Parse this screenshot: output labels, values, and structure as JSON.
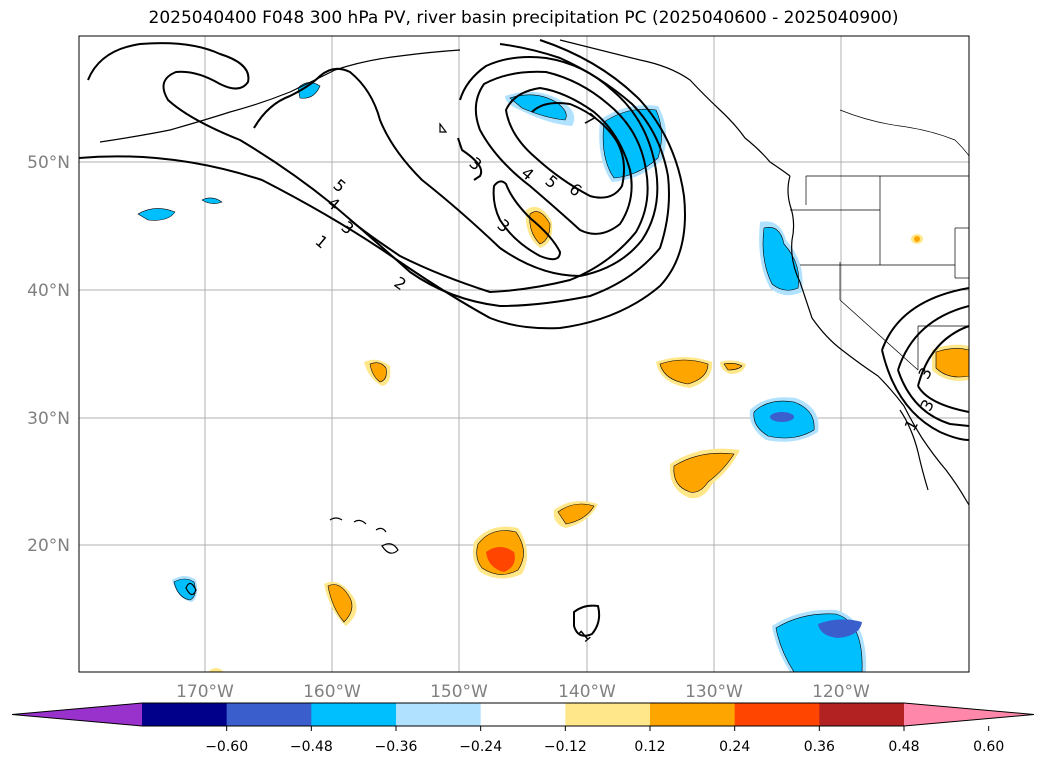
{
  "title": "2025040400 F048 300 hPa PV, river basin precipitation PC (2025040600 - 2025040900)",
  "map": {
    "lon_labels": [
      "170°W",
      "160°W",
      "150°W",
      "140°W",
      "130°W",
      "120°W"
    ],
    "lat_labels": [
      "50°N",
      "40°N",
      "30°N",
      "20°N"
    ],
    "grid": true
  },
  "colorbar": {
    "tick_labels": [
      "−0.60",
      "−0.48",
      "−0.36",
      "−0.24",
      "−0.12",
      "0.12",
      "0.24",
      "0.36",
      "0.48",
      "0.60"
    ],
    "colors": [
      "#9932CC",
      "#00008B",
      "#3A5FCD",
      "#00BFFF",
      "#B0E2FF",
      "#FFFFFF",
      "#FFE78A",
      "#FFA500",
      "#FF4500",
      "#B22222",
      "#FF88AA"
    ]
  },
  "pv_contour_labels": [
    "1",
    "2",
    "3",
    "3",
    "3",
    "4",
    "4",
    "5",
    "5",
    "6",
    "7",
    "3",
    "1",
    "3",
    "1"
  ]
}
